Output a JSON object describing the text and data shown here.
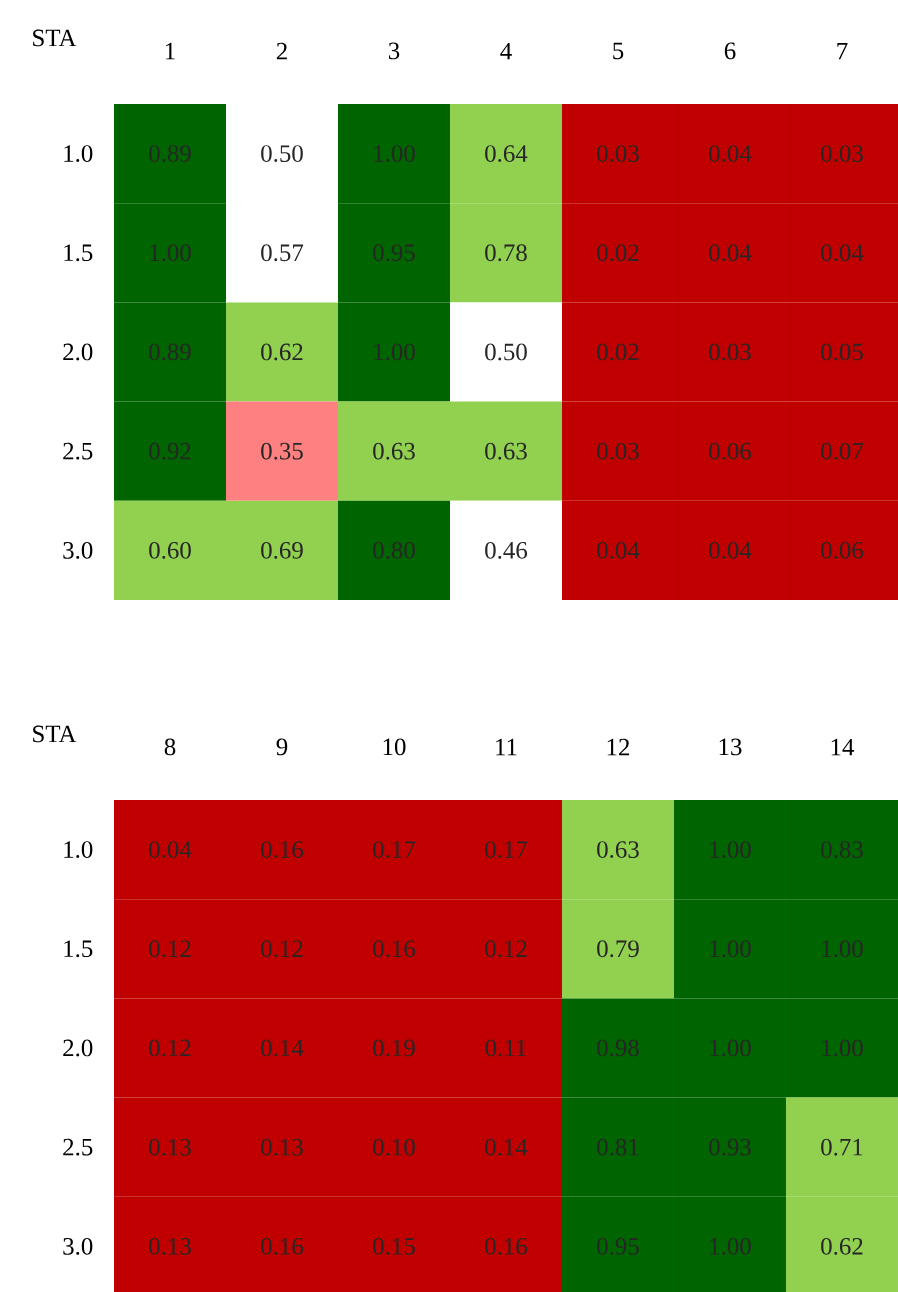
{
  "chart_data": [
    {
      "type": "heatmap",
      "ylabel": "STA",
      "categories": [
        "1",
        "2",
        "3",
        "4",
        "5",
        "6",
        "7"
      ],
      "y_categories": [
        "1.0",
        "1.5",
        "2.0",
        "2.5",
        "3.0"
      ],
      "cells": [
        [
          0.89,
          0.5,
          1.0,
          0.64,
          0.03,
          0.04,
          0.03
        ],
        [
          1.0,
          0.57,
          0.95,
          0.78,
          0.02,
          0.04,
          0.04
        ],
        [
          0.89,
          0.62,
          1.0,
          0.5,
          0.02,
          0.03,
          0.05
        ],
        [
          0.92,
          0.35,
          0.63,
          0.63,
          0.03,
          0.06,
          0.07
        ],
        [
          0.6,
          0.69,
          0.8,
          0.46,
          0.04,
          0.04,
          0.06
        ]
      ],
      "cell_labels": [
        [
          "0.89",
          "0.50",
          "1.00",
          "0.64",
          "0.03",
          "0.04",
          "0.03"
        ],
        [
          "1.00",
          "0.57",
          "0.95",
          "0.78",
          "0.02",
          "0.04",
          "0.04"
        ],
        [
          "0.89",
          "0.62",
          "1.00",
          "0.50",
          "0.02",
          "0.03",
          "0.05"
        ],
        [
          "0.92",
          "0.35",
          "0.63",
          "0.63",
          "0.03",
          "0.06",
          "0.07"
        ],
        [
          "0.60",
          "0.69",
          "0.80",
          "0.46",
          "0.04",
          "0.04",
          "0.06"
        ]
      ],
      "colors": [
        "#c00000",
        "#ff8080",
        "#ffffff",
        "#92d050",
        "#006400"
      ]
    },
    {
      "type": "heatmap",
      "ylabel": "STA",
      "categories": [
        "8",
        "9",
        "10",
        "11",
        "12",
        "13",
        "14"
      ],
      "y_categories": [
        "1.0",
        "1.5",
        "2.0",
        "2.5",
        "3.0"
      ],
      "cells": [
        [
          0.04,
          0.16,
          0.17,
          0.17,
          0.63,
          1.0,
          0.83
        ],
        [
          0.12,
          0.12,
          0.16,
          0.12,
          0.79,
          1.0,
          1.0
        ],
        [
          0.12,
          0.14,
          0.19,
          0.11,
          0.98,
          1.0,
          1.0
        ],
        [
          0.13,
          0.13,
          0.1,
          0.14,
          0.81,
          0.93,
          0.71
        ],
        [
          0.13,
          0.16,
          0.15,
          0.16,
          0.95,
          1.0,
          0.62
        ]
      ],
      "cell_labels": [
        [
          "0.04",
          "0.16",
          "0.17",
          "0.17",
          "0.63",
          "1.00",
          "0.83"
        ],
        [
          "0.12",
          "0.12",
          "0.16",
          "0.12",
          "0.79",
          "1.00",
          "1.00"
        ],
        [
          "0.12",
          "0.14",
          "0.19",
          "0.11",
          "0.98",
          "1.00",
          "1.00"
        ],
        [
          "0.13",
          "0.13",
          "0.10",
          "0.14",
          "0.81",
          "0.93",
          "0.71"
        ],
        [
          "0.13",
          "0.16",
          "0.15",
          "0.16",
          "0.95",
          "1.00",
          "0.62"
        ]
      ],
      "colors": [
        "#c00000",
        "#ff8080",
        "#ffffff",
        "#92d050",
        "#006400"
      ]
    }
  ]
}
